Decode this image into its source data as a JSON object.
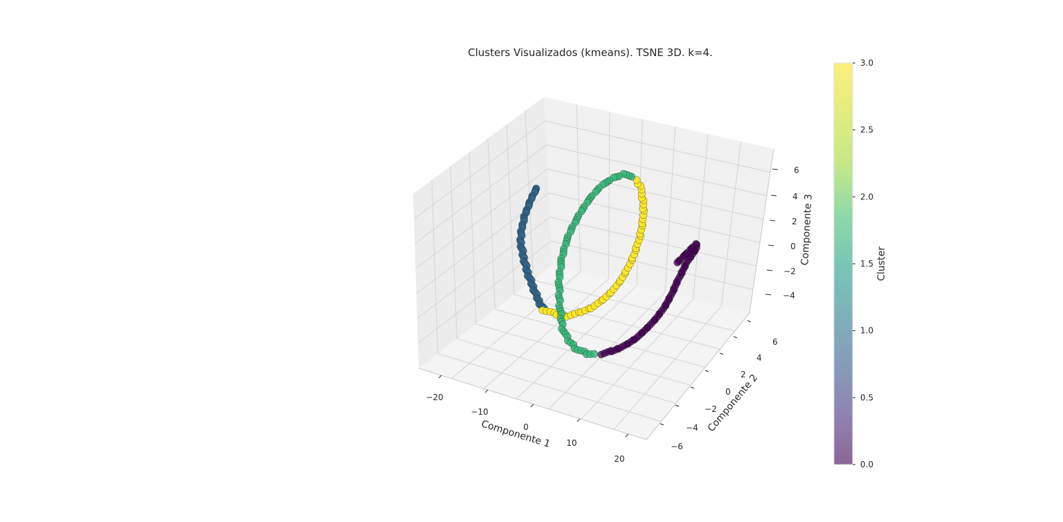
{
  "chart_data": {
    "type": "scatter",
    "projection": "3d",
    "title": "Clusters Visualizados (kmeans). TSNE 3D. k=4.",
    "xlabel": "Componente 1",
    "ylabel": "Componente 2",
    "zlabel": "Componente 3",
    "xticks": [
      "−20",
      "−10",
      "0",
      "10",
      "20"
    ],
    "yticks": [
      "−6",
      "−4",
      "−2",
      "0",
      "2",
      "4",
      "6"
    ],
    "zticks": [
      "−4",
      "−2",
      "0",
      "2",
      "4",
      "6"
    ],
    "grid": true,
    "colorbar": {
      "label": "Cluster",
      "ticks": [
        "0.0",
        "0.5",
        "1.0",
        "1.5",
        "2.0",
        "2.5",
        "3.0"
      ],
      "colormap": "viridis",
      "range": [
        0,
        3
      ]
    },
    "series": [
      {
        "cluster": 0,
        "color": "#440154"
      },
      {
        "cluster": 1,
        "color": "#31688e"
      },
      {
        "cluster": 2,
        "color": "#35b779"
      },
      {
        "cluster": 3,
        "color": "#fde725"
      }
    ]
  }
}
